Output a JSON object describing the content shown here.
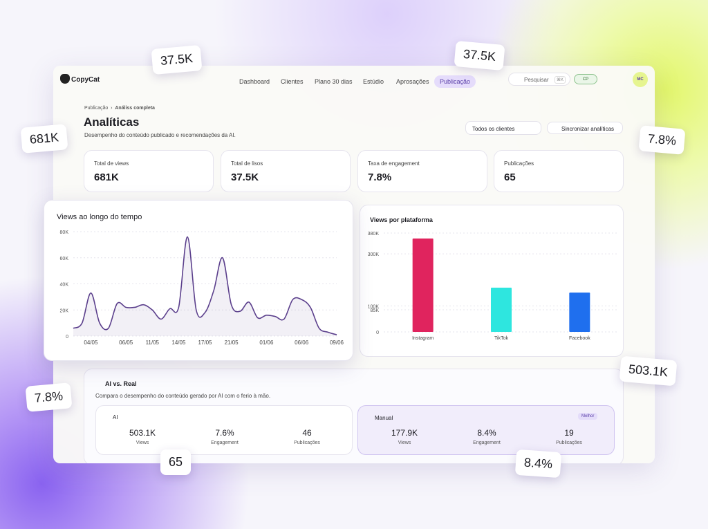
{
  "brand": "CopyCat",
  "nav": {
    "items": [
      "Dashboard",
      "Clientes",
      "Plano 30 dias",
      "Estúdio",
      "Aprosações",
      "Publicação"
    ],
    "active": 5,
    "search": "Pesquisar",
    "shortcut": "⌘K",
    "chip": "CP",
    "avatar": "MC"
  },
  "header": {
    "breadcrumb": [
      "Publicação",
      "Análiss completa"
    ],
    "title": "Analíticas",
    "subtitle": "Desempenho do conteúdo publicado e recomendações da AI.",
    "filter": "Todos os clientes",
    "sync": "Sincronizar analíticas"
  },
  "kpis": [
    {
      "label": "Total de views",
      "value": "681K"
    },
    {
      "label": "Total de lisos",
      "value": "37.5K"
    },
    {
      "label": "Taxa de engagement",
      "value": "7.8%"
    },
    {
      "label": "Publicações",
      "value": "65"
    }
  ],
  "chart_data": [
    {
      "type": "line",
      "title": "Views ao longo do tempo",
      "categories": [
        null,
        null,
        "04/05",
        null,
        null,
        null,
        "06/05",
        null,
        null,
        "11/05",
        null,
        null,
        "14/05",
        null,
        null,
        "17/05",
        null,
        null,
        "21/05",
        null,
        null,
        null,
        "01/06",
        null,
        null,
        null,
        "06/06",
        null,
        null,
        null,
        "09/06"
      ],
      "series": [
        {
          "color": "#5b3f8c",
          "values": [
            6,
            10,
            33,
            10,
            6,
            25,
            22,
            22,
            24,
            20,
            13,
            21,
            22,
            76,
            20,
            18,
            35,
            60,
            24,
            19,
            26,
            14,
            16,
            15,
            13,
            28,
            28,
            22,
            6,
            3,
            1
          ]
        }
      ],
      "ylim": [
        0,
        80
      ],
      "yticks": [
        0,
        {
          "value": 20,
          "label": "20K"
        },
        {
          "value": 40,
          "label": "40K"
        },
        {
          "value": 60,
          "label": "60K"
        },
        {
          "value": 80,
          "label": "80K"
        }
      ],
      "grid": true
    },
    {
      "type": "bar",
      "title": "Views por plataforma",
      "categories": [
        "Instagram",
        "TikTok",
        "Facebook"
      ],
      "values": [
        359,
        170,
        151
      ],
      "colors": [
        "#e0245e",
        "#2ee6df",
        "#1f6fee"
      ],
      "ylim": [
        0,
        380
      ],
      "yticks": [
        0,
        {
          "value": 85,
          "label": "85K"
        },
        {
          "value": 100,
          "label": "100K"
        },
        {
          "value": 300,
          "label": "300K"
        },
        {
          "value": 380,
          "label": "380K"
        }
      ],
      "grid": true
    }
  ],
  "comparison": {
    "title": "AI vs. Real",
    "subtitle": "Compara o desempenho do conteúdo gerado por AI com o ferio à mão.",
    "groups": [
      {
        "name": "AI",
        "stats": [
          {
            "value": "503.1K",
            "label": "Views"
          },
          {
            "value": "7.6%",
            "label": "Engagement"
          },
          {
            "value": "46",
            "label": "Publicações"
          }
        ]
      },
      {
        "name": "Manual",
        "badge": "Melhor",
        "stats": [
          {
            "value": "177.9K",
            "label": "Views"
          },
          {
            "value": "8.4%",
            "label": "Engagement"
          },
          {
            "value": "19",
            "label": "Publicações"
          }
        ]
      }
    ]
  },
  "floating_badges": [
    "37.5K",
    "37.5K",
    "681K",
    "7.8%",
    "503.1K",
    "7.8%",
    "65",
    "8.4%"
  ]
}
